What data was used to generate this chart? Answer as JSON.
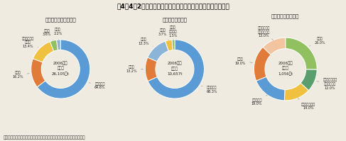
{
  "title": "図4－4－2　セメント産業での産業廃棄物・副産物の活用状況",
  "subtitle_note": "資料：鉄鋼スラグ協会、石炭エネルギーセンター、日本自動車タイヤ協会",
  "background_color": "#f0ebe0",
  "charts": [
    {
      "title": "高炉スラグの利用状況",
      "center_line1": "2006年度",
      "center_line2": "利用量",
      "center_line3": "26,105千t",
      "slices": [
        {
          "label": "セメント用",
          "pct": "64.6%",
          "value": 64.6,
          "color": "#5b9bd5",
          "side": "bottom"
        },
        {
          "label": "道路用",
          "pct": "16.2%",
          "value": 16.2,
          "color": "#e07b39",
          "side": "left"
        },
        {
          "label": "コンクリート\n骨材用",
          "pct": "13.4%",
          "value": 13.4,
          "color": "#f0c040",
          "side": "left"
        },
        {
          "label": "土木用",
          "pct": "3.6%",
          "value": 3.6,
          "color": "#90c060",
          "side": "top"
        },
        {
          "label": "その他",
          "pct": "2.2%",
          "value": 2.2,
          "color": "#8ab4d8",
          "side": "top"
        }
      ]
    },
    {
      "title": "石炭灰の利用状況",
      "center_line1": "2006年度",
      "center_line2": "利用量",
      "center_line3": "10,657t",
      "slices": [
        {
          "label": "セメント用",
          "pct": "68.3%",
          "value": 68.3,
          "color": "#5b9bd5",
          "side": "bottom"
        },
        {
          "label": "土木用",
          "pct": "13.2%",
          "value": 13.2,
          "color": "#e07b39",
          "side": "left"
        },
        {
          "label": "その他",
          "pct": "13.3%",
          "value": 13.3,
          "color": "#8ab4d8",
          "side": "right"
        },
        {
          "label": "建築用",
          "pct": "3.7%",
          "value": 3.7,
          "color": "#f0c040",
          "side": "left"
        },
        {
          "label": "農林・\n水産分野",
          "pct": "1.5%",
          "value": 1.5,
          "color": "#90c060",
          "side": "top"
        }
      ]
    },
    {
      "title": "廃タイヤの利用状況",
      "center_line1": "2006年度",
      "center_line2": "利用量",
      "center_line3": "1,056千t",
      "slices": [
        {
          "label": "製紙用",
          "pct": "26.0%",
          "value": 26.0,
          "color": "#90c060",
          "side": "left"
        },
        {
          "label": "セメント・製紙\n以外の熱利用",
          "pct": "12.0%",
          "value": 12.0,
          "color": "#5a9e6e",
          "side": "left"
        },
        {
          "label": "その他未利用分",
          "pct": "14.0%",
          "value": 14.0,
          "color": "#f0c040",
          "side": "top"
        },
        {
          "label": "セメント用",
          "pct": "19.0%",
          "value": 19.0,
          "color": "#5b9bd5",
          "side": "right"
        },
        {
          "label": "輸出用",
          "pct": "19.0%",
          "value": 19.0,
          "color": "#e07b39",
          "side": "right"
        },
        {
          "label": "再生タイヤ・\n再生ゴム用等",
          "pct": "13.0%",
          "value": 13.0,
          "color": "#f2c5a0",
          "side": "bottom"
        }
      ]
    }
  ]
}
